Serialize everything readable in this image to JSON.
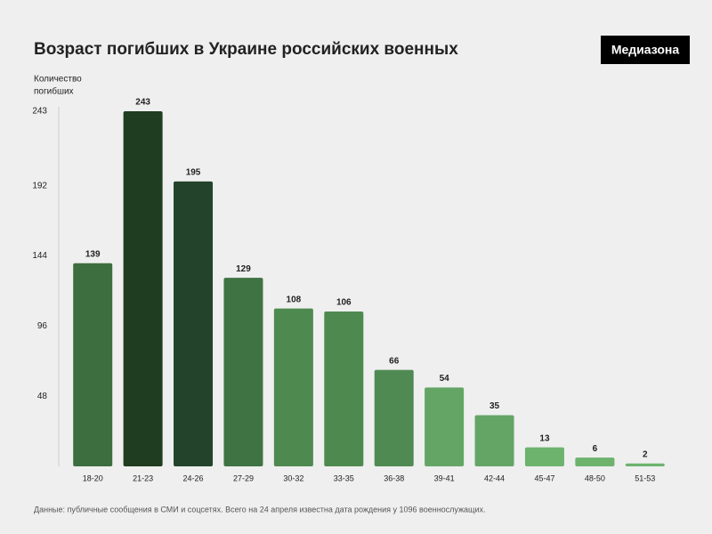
{
  "chart_data": {
    "type": "bar",
    "title": "Возраст погибших в Украине российских военных",
    "logo": "Медиазона",
    "y_label_lines": [
      "Количество",
      "погибших"
    ],
    "categories": [
      "18-20",
      "21-23",
      "24-26",
      "27-29",
      "30-32",
      "33-35",
      "36-38",
      "39-41",
      "42-44",
      "45-47",
      "48-50",
      "51-53"
    ],
    "values": [
      139,
      243,
      195,
      129,
      108,
      106,
      66,
      54,
      35,
      13,
      6,
      2
    ],
    "colors": [
      "#3c6e3f",
      "#1f3d20",
      "#23432a",
      "#3f7343",
      "#4e8a50",
      "#4e8a50",
      "#4f8a52",
      "#64a566",
      "#64a566",
      "#6db36e",
      "#6db36e",
      "#6db36e"
    ],
    "ylim": [
      0,
      243
    ],
    "yticks": [
      48,
      96,
      144,
      192,
      243
    ],
    "grid": false,
    "note": "Данные: публичные сообщения в СМИ и соцсетях. Всего на 24 апреля известна дата рождения у 1096 военнослужащих."
  }
}
